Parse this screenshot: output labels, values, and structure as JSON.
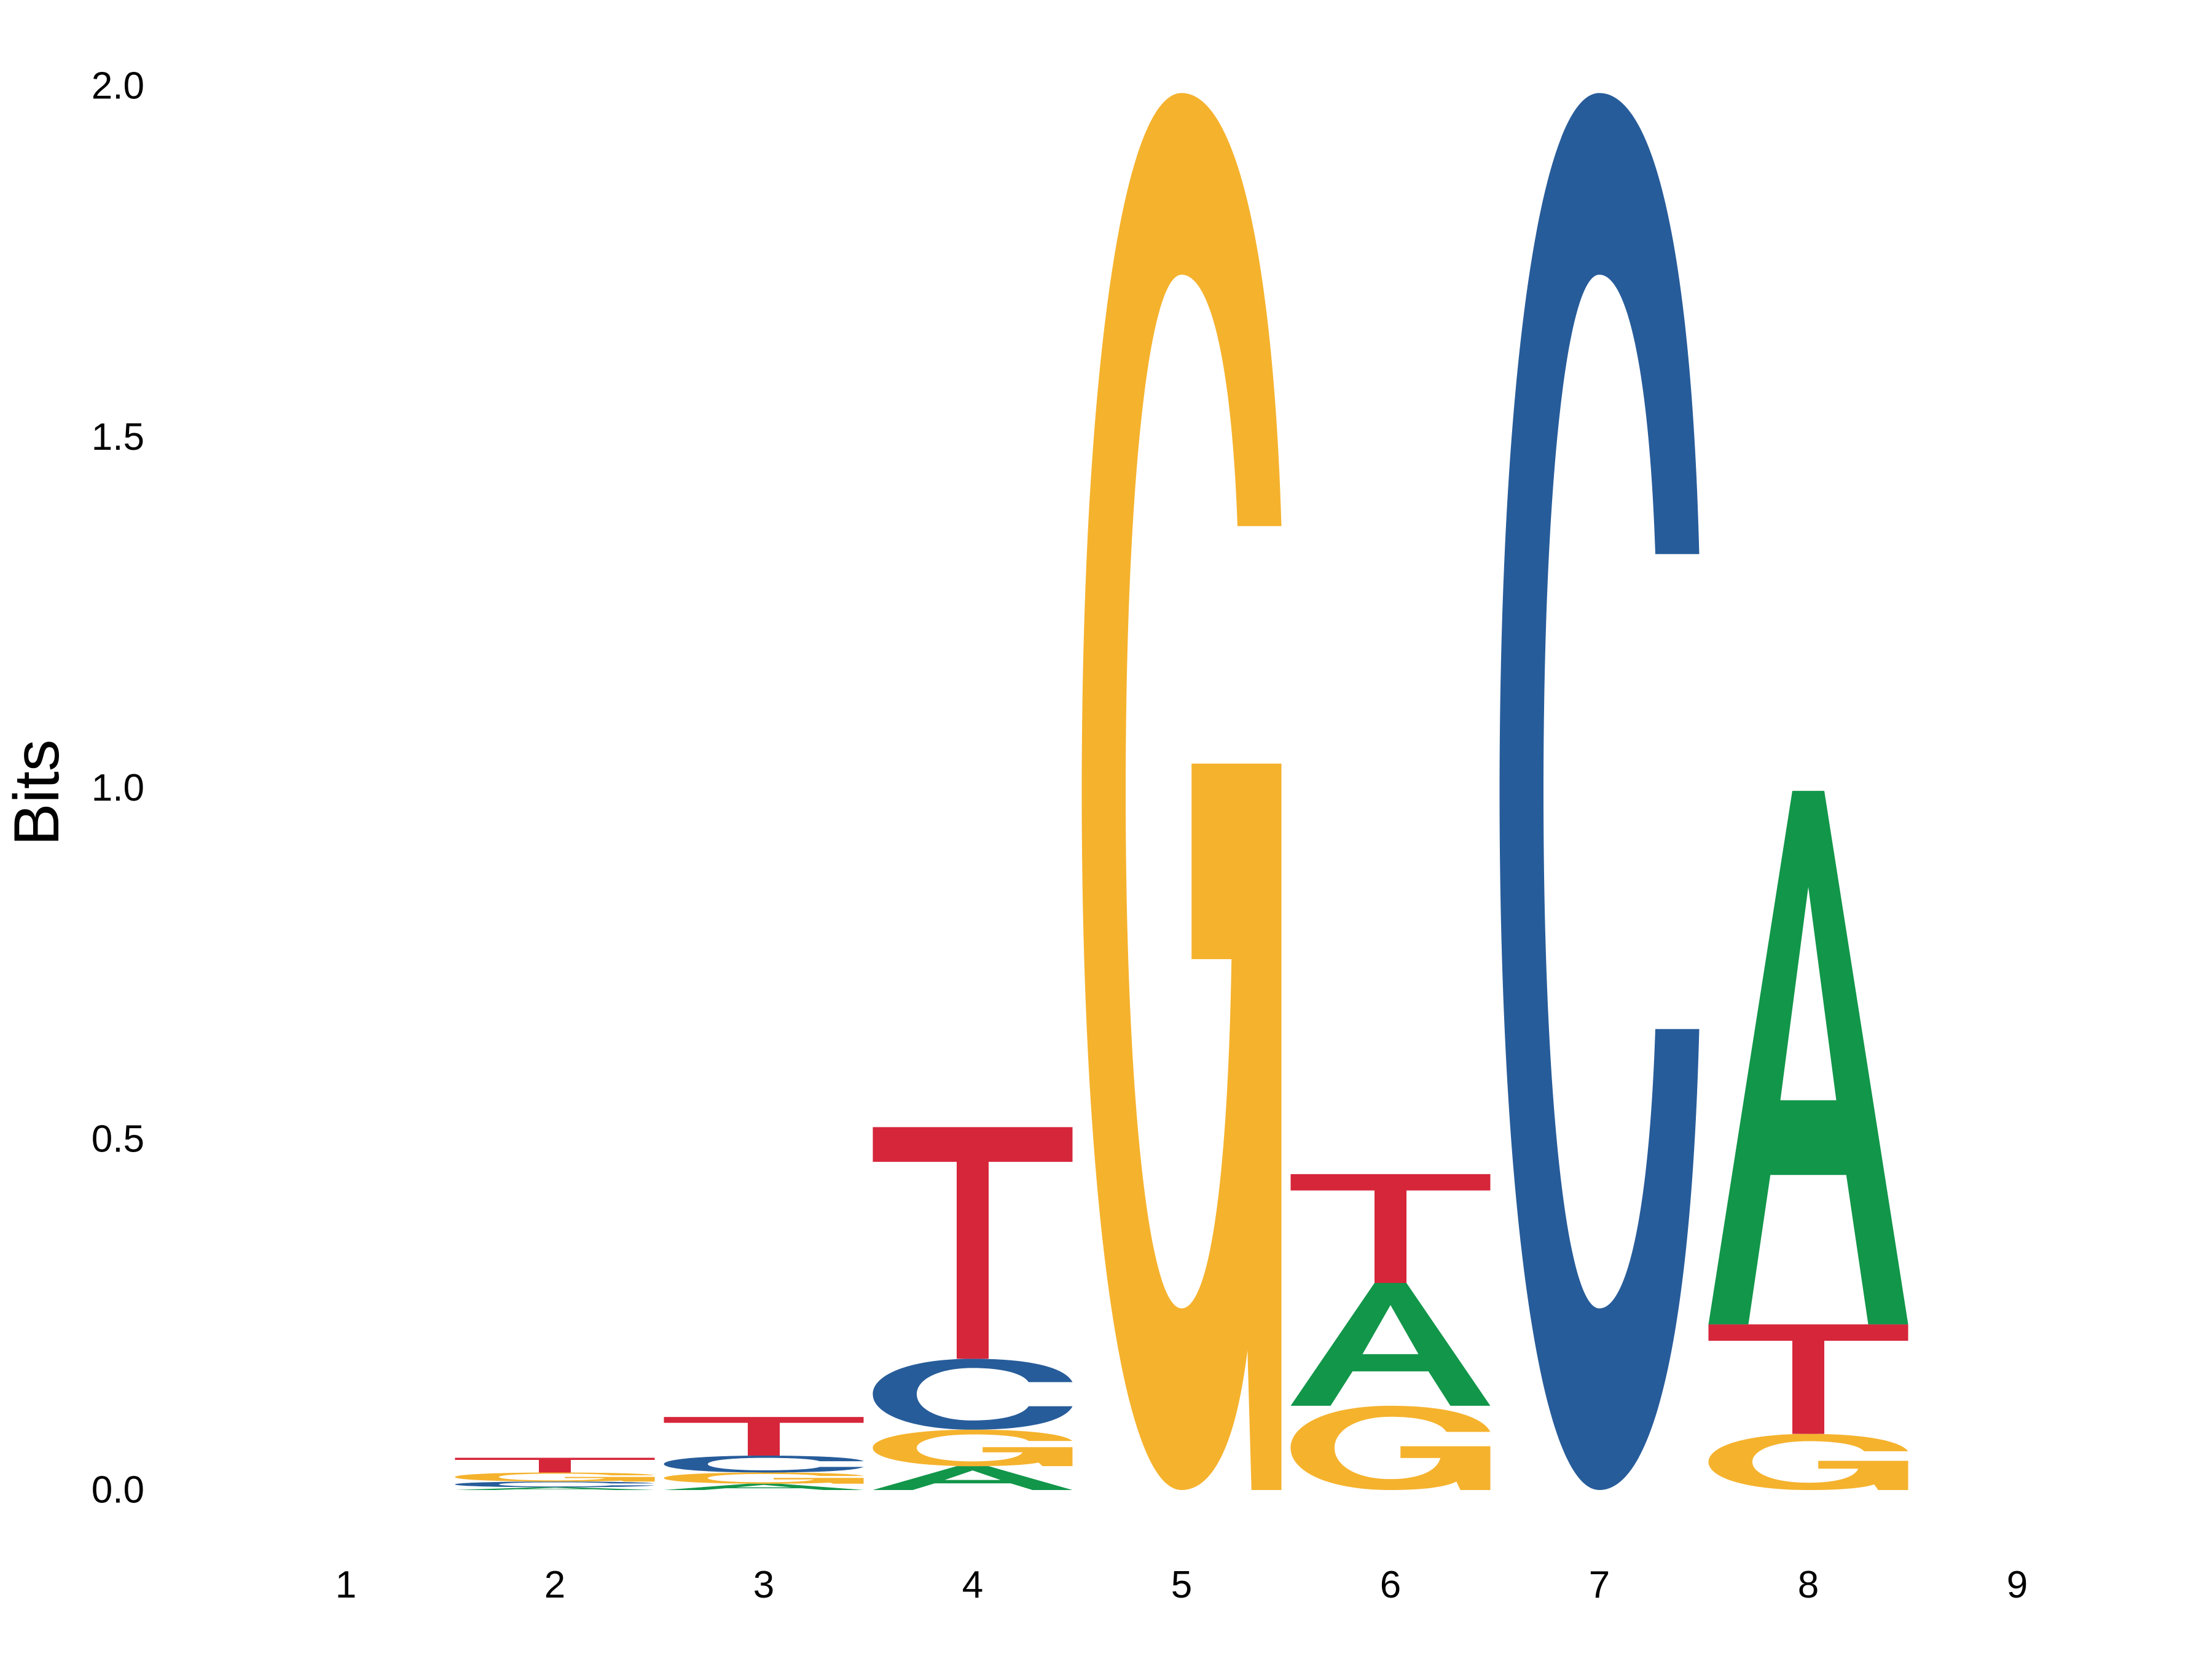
{
  "chart_data": {
    "type": "sequence-logo",
    "ylabel": "Bits",
    "ylim": [
      0,
      2
    ],
    "yticks": [
      "0.0",
      "0.5",
      "1.0",
      "1.5",
      "2.0"
    ],
    "xticks": [
      "1",
      "2",
      "3",
      "4",
      "5",
      "6",
      "7",
      "8",
      "9"
    ],
    "colors": {
      "A": "#12964a",
      "C": "#275c9a",
      "G": "#f5b22d",
      "T": "#d6263a"
    },
    "positions": [
      {
        "position": "1",
        "letters": []
      },
      {
        "position": "2",
        "letters": [
          {
            "base": "A",
            "bits": 0.004
          },
          {
            "base": "C",
            "bits": 0.008
          },
          {
            "base": "G",
            "bits": 0.013
          },
          {
            "base": "T",
            "bits": 0.021
          }
        ]
      },
      {
        "position": "3",
        "letters": [
          {
            "base": "A",
            "bits": 0.009
          },
          {
            "base": "G",
            "bits": 0.016
          },
          {
            "base": "C",
            "bits": 0.024
          },
          {
            "base": "T",
            "bits": 0.055
          }
        ]
      },
      {
        "position": "4",
        "letters": [
          {
            "base": "A",
            "bits": 0.034
          },
          {
            "base": "G",
            "bits": 0.052
          },
          {
            "base": "C",
            "bits": 0.101
          },
          {
            "base": "T",
            "bits": 0.33
          }
        ]
      },
      {
        "position": "5",
        "letters": [
          {
            "base": "G",
            "bits": 1.99
          }
        ]
      },
      {
        "position": "6",
        "letters": [
          {
            "base": "G",
            "bits": 0.12
          },
          {
            "base": "A",
            "bits": 0.175
          },
          {
            "base": "T",
            "bits": 0.155
          }
        ]
      },
      {
        "position": "7",
        "letters": [
          {
            "base": "C",
            "bits": 1.99
          }
        ]
      },
      {
        "position": "8",
        "letters": [
          {
            "base": "G",
            "bits": 0.08
          },
          {
            "base": "T",
            "bits": 0.156
          },
          {
            "base": "A",
            "bits": 0.76
          }
        ]
      },
      {
        "position": "9",
        "letters": []
      }
    ]
  }
}
